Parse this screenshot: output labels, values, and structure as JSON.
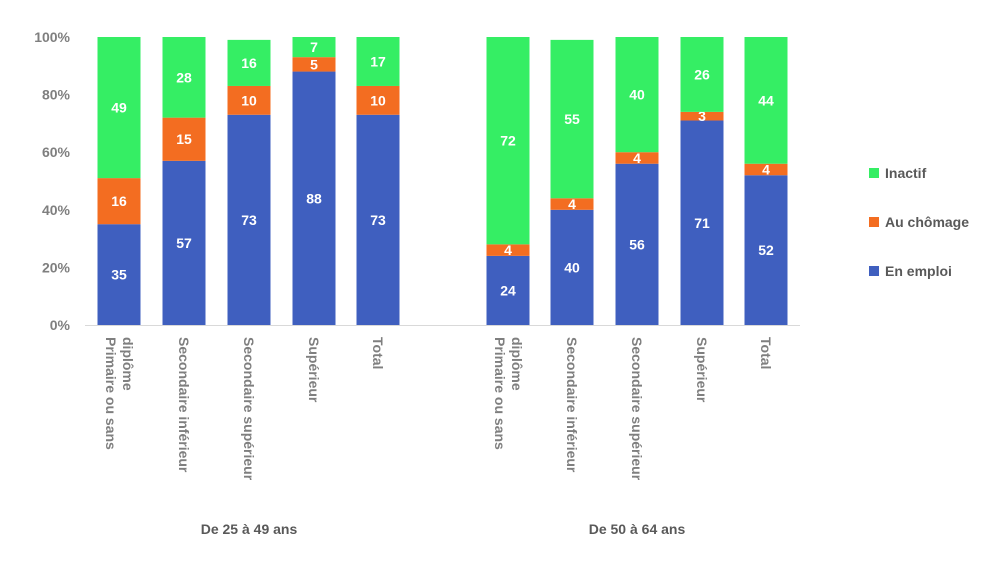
{
  "chart_data": {
    "type": "bar",
    "stacked": true,
    "y_axis": {
      "ylim": [
        0,
        100
      ],
      "ticks": [
        "0%",
        "20%",
        "40%",
        "60%",
        "80%",
        "100%"
      ],
      "tick_values": [
        0,
        20,
        40,
        60,
        80,
        100
      ]
    },
    "groups": [
      {
        "name": "De 25 à 49 ans",
        "categories": [
          "Primaire ou sans diplôme",
          "Secondaire inférieur",
          "Secondaire supérieur",
          "Supérieur",
          "Total"
        ]
      },
      {
        "name": "De 50 à 64 ans",
        "categories": [
          "Primaire ou sans diplôme",
          "Secondaire inférieur",
          "Secondaire supérieur",
          "Supérieur",
          "Total"
        ]
      }
    ],
    "series": [
      {
        "name": "En emploi",
        "color": "#3f5fbf",
        "values": [
          35,
          57,
          73,
          88,
          73,
          24,
          40,
          56,
          71,
          52
        ]
      },
      {
        "name": "Au chômage",
        "color": "#f36d21",
        "values": [
          16,
          15,
          10,
          5,
          10,
          4,
          4,
          4,
          3,
          4
        ]
      },
      {
        "name": "Inactif",
        "color": "#35ee64",
        "values": [
          49,
          28,
          16,
          7,
          17,
          72,
          55,
          40,
          26,
          44
        ]
      }
    ],
    "legend": {
      "position": "right",
      "order": [
        "Inactif",
        "Au chômage",
        "En emploi"
      ]
    },
    "grid": false
  }
}
